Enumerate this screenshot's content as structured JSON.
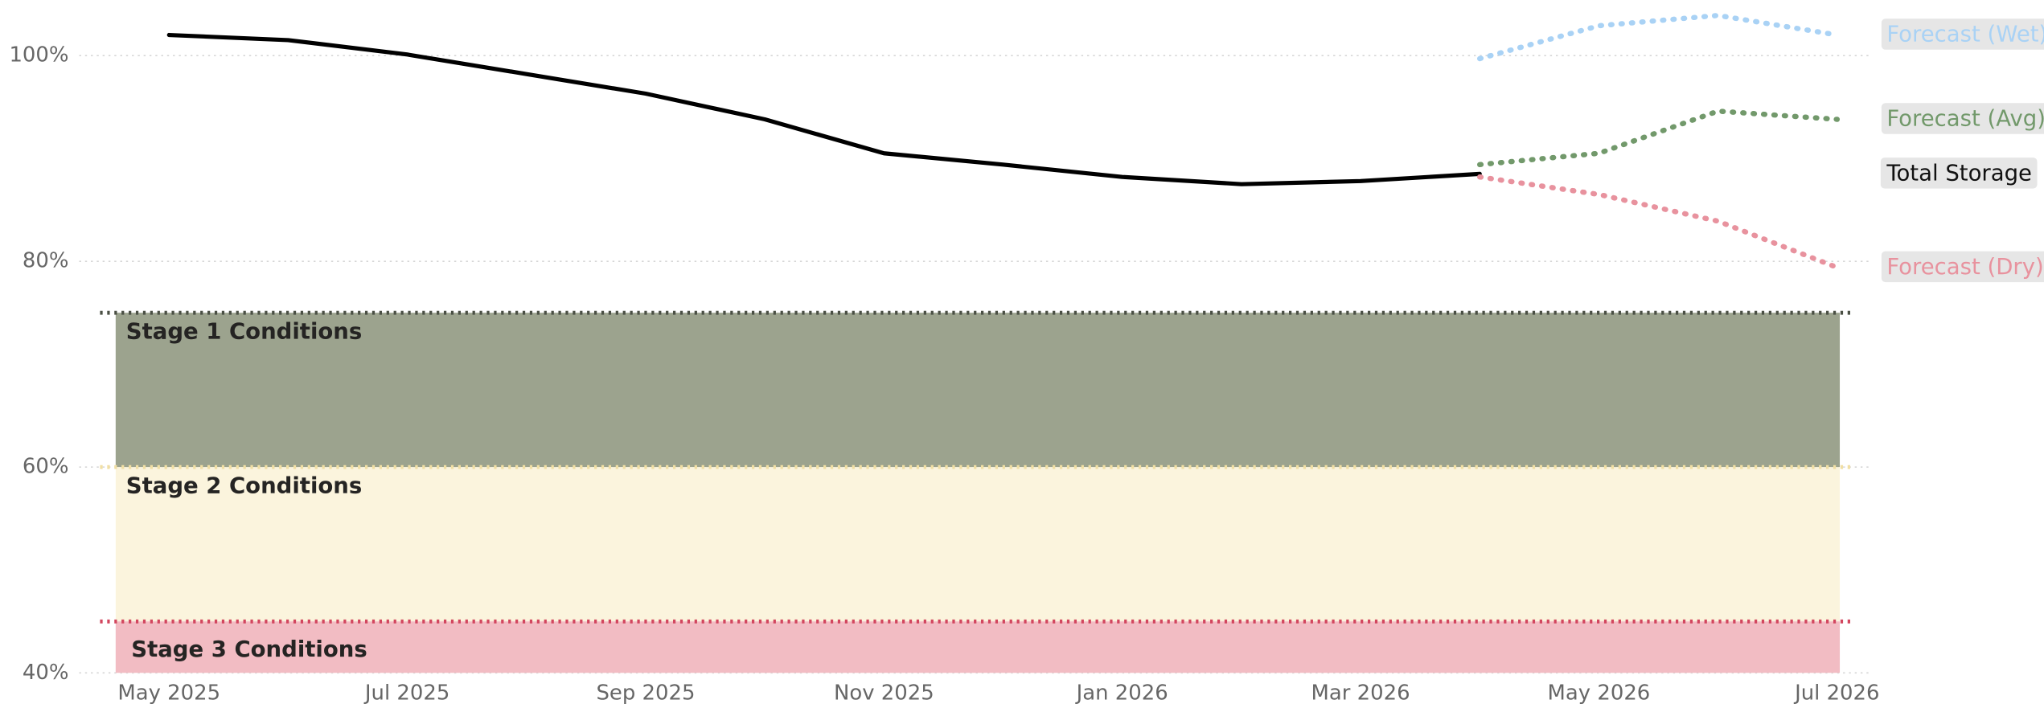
{
  "chart_data": {
    "type": "line",
    "x": [
      "2025-05",
      "2025-06",
      "2025-07",
      "2025-08",
      "2025-09",
      "2025-10",
      "2025-11",
      "2025-12",
      "2026-01",
      "2026-02",
      "2026-03",
      "2026-04",
      "2026-05",
      "2026-06",
      "2026-07"
    ],
    "series": [
      {
        "name": "Forecast (Wet)",
        "color": "#a9d2f5",
        "dash": true,
        "values": [
          null,
          null,
          null,
          null,
          null,
          null,
          null,
          null,
          null,
          null,
          null,
          99.7,
          102.9,
          103.9,
          102
        ]
      },
      {
        "name": "Forecast (Avg)",
        "color": "#72996b",
        "dash": true,
        "values": [
          null,
          null,
          null,
          null,
          null,
          null,
          null,
          null,
          null,
          null,
          null,
          89.4,
          90.5,
          94.6,
          93.8
        ]
      },
      {
        "name": "Total Storage",
        "color": "#000000",
        "dash": false,
        "values": [
          102,
          101.5,
          100.1,
          98.2,
          96.3,
          93.8,
          90.5,
          89.4,
          88.2,
          87.5,
          87.8,
          88.5,
          null,
          null,
          null
        ]
      },
      {
        "name": "Forecast (Dry)",
        "color": "#e8929e",
        "dash": true,
        "values": [
          null,
          null,
          null,
          null,
          null,
          null,
          null,
          null,
          null,
          null,
          null,
          88.2,
          86.5,
          83.9,
          79.4
        ]
      }
    ],
    "bands": [
      {
        "label": "Stage 1 Conditions",
        "from": 60,
        "to": 75,
        "color": "#9ca38e",
        "line_color": "#4a4f44"
      },
      {
        "label": "Stage 2 Conditions",
        "from": 45,
        "to": 60,
        "color": "#fbf4dd",
        "line_color": "#f1dfa4"
      },
      {
        "label": "Stage 3 Conditions",
        "from": 40,
        "to": 45,
        "color": "#f2bcc3",
        "line_color": "#d2465e"
      }
    ],
    "xlim": [
      "2025-05",
      "2026-07"
    ],
    "xticks": [
      {
        "value": "2025-05",
        "label": "May 2025"
      },
      {
        "value": "2025-07",
        "label": "Jul 2025"
      },
      {
        "value": "2025-09",
        "label": "Sep 2025"
      },
      {
        "value": "2025-11",
        "label": "Nov 2025"
      },
      {
        "value": "2026-01",
        "label": "Jan 2026"
      },
      {
        "value": "2026-03",
        "label": "Mar 2026"
      },
      {
        "value": "2026-05",
        "label": "May 2026"
      },
      {
        "value": "2026-07",
        "label": "Jul 2026"
      }
    ],
    "ylim": [
      40,
      105.4
    ],
    "yticks": [
      {
        "value": 40,
        "label": "40%"
      },
      {
        "value": 60,
        "label": "60%"
      },
      {
        "value": 80,
        "label": "80%"
      },
      {
        "value": 100,
        "label": "100%"
      }
    ],
    "grid": true
  }
}
